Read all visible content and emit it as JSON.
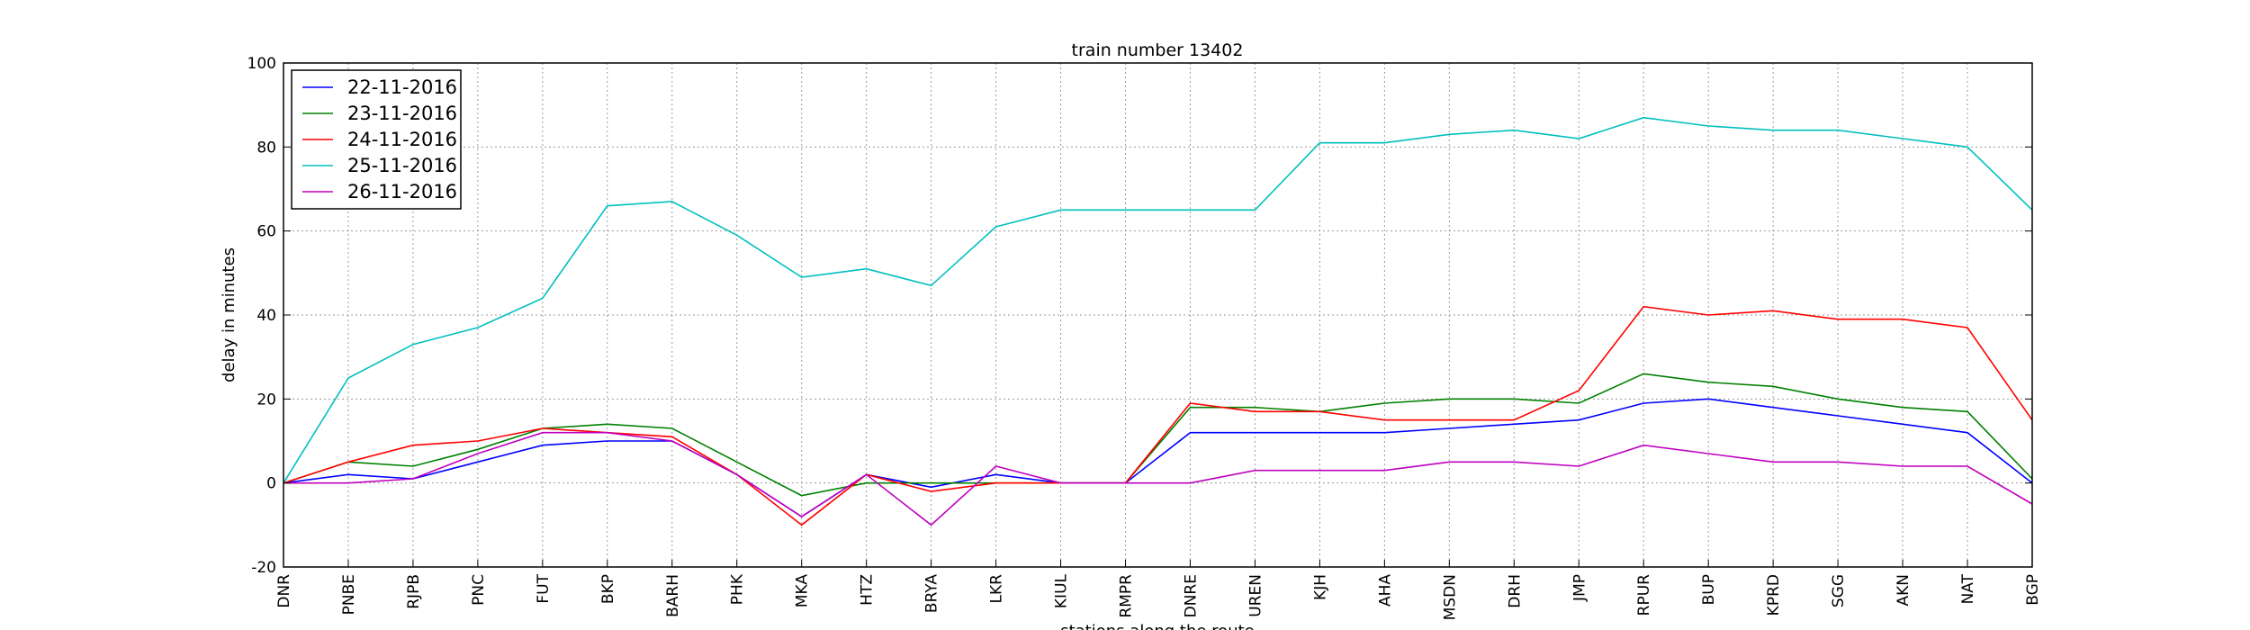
{
  "chart_data": {
    "type": "line",
    "title": "train number 13402",
    "xlabel": "stations along the route",
    "ylabel": "delay in minutes",
    "ylim": [
      -20,
      100
    ],
    "yticks": [
      -20,
      0,
      20,
      40,
      60,
      80,
      100
    ],
    "grid": true,
    "legend_position": "top-left",
    "categories": [
      "DNR",
      "PNBE",
      "RJPB",
      "PNC",
      "FUT",
      "BKP",
      "BARH",
      "PHK",
      "MKA",
      "HTZ",
      "BRYA",
      "LKR",
      "KIUL",
      "RMPR",
      "DNRE",
      "UREN",
      "KJH",
      "AHA",
      "MSDN",
      "DRH",
      "JMP",
      "RPUR",
      "BUP",
      "KPRD",
      "SGG",
      "AKN",
      "NAT",
      "BGP"
    ],
    "series": [
      {
        "name": "22-11-2016",
        "color": "#0000ff",
        "values": [
          0,
          2,
          1,
          5,
          9,
          10,
          10,
          2,
          -8,
          2,
          -1,
          2,
          0,
          0,
          12,
          12,
          12,
          12,
          13,
          14,
          15,
          19,
          20,
          18,
          16,
          14,
          12,
          0
        ]
      },
      {
        "name": "23-11-2016",
        "color": "#008000",
        "values": [
          0,
          5,
          4,
          8,
          13,
          14,
          13,
          5,
          -3,
          0,
          0,
          0,
          0,
          0,
          18,
          18,
          17,
          19,
          20,
          20,
          19,
          26,
          24,
          23,
          20,
          18,
          17,
          1
        ]
      },
      {
        "name": "24-11-2016",
        "color": "#ff0000",
        "values": [
          0,
          5,
          9,
          10,
          13,
          12,
          11,
          2,
          -10,
          2,
          -2,
          0,
          0,
          0,
          19,
          17,
          17,
          15,
          15,
          15,
          22,
          42,
          40,
          41,
          39,
          39,
          37,
          15
        ]
      },
      {
        "name": "25-11-2016",
        "color": "#00bfbf",
        "values": [
          0,
          25,
          33,
          37,
          44,
          66,
          67,
          59,
          49,
          51,
          47,
          61,
          65,
          65,
          65,
          65,
          81,
          81,
          83,
          84,
          82,
          87,
          85,
          84,
          84,
          82,
          80,
          65
        ]
      },
      {
        "name": "26-11-2016",
        "color": "#bf00bf",
        "values": [
          0,
          0,
          1,
          7,
          12,
          12,
          10,
          2,
          -8,
          2,
          -10,
          4,
          0,
          0,
          0,
          3,
          3,
          3,
          5,
          5,
          4,
          9,
          7,
          5,
          5,
          4,
          4,
          -5
        ]
      }
    ]
  }
}
